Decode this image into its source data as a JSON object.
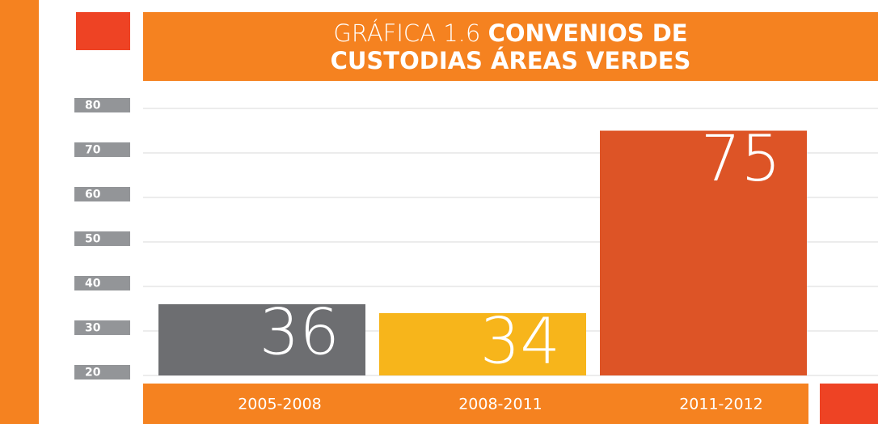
{
  "chart_data": {
    "type": "bar",
    "title_label": "GRÁFICA 1.6",
    "title": "CONVENIOS DE CUSTODIAS ÁREAS VERDES",
    "categories": [
      "2005-2008",
      "2008-2011",
      "2011-2012"
    ],
    "values": [
      36,
      34,
      75
    ],
    "colors": [
      "#6d6e71",
      "#f7b51b",
      "#dd5426"
    ],
    "ylim": [
      20,
      80
    ],
    "yticks": [
      20,
      30,
      40,
      50,
      60,
      70,
      80
    ],
    "grid": true
  }
}
